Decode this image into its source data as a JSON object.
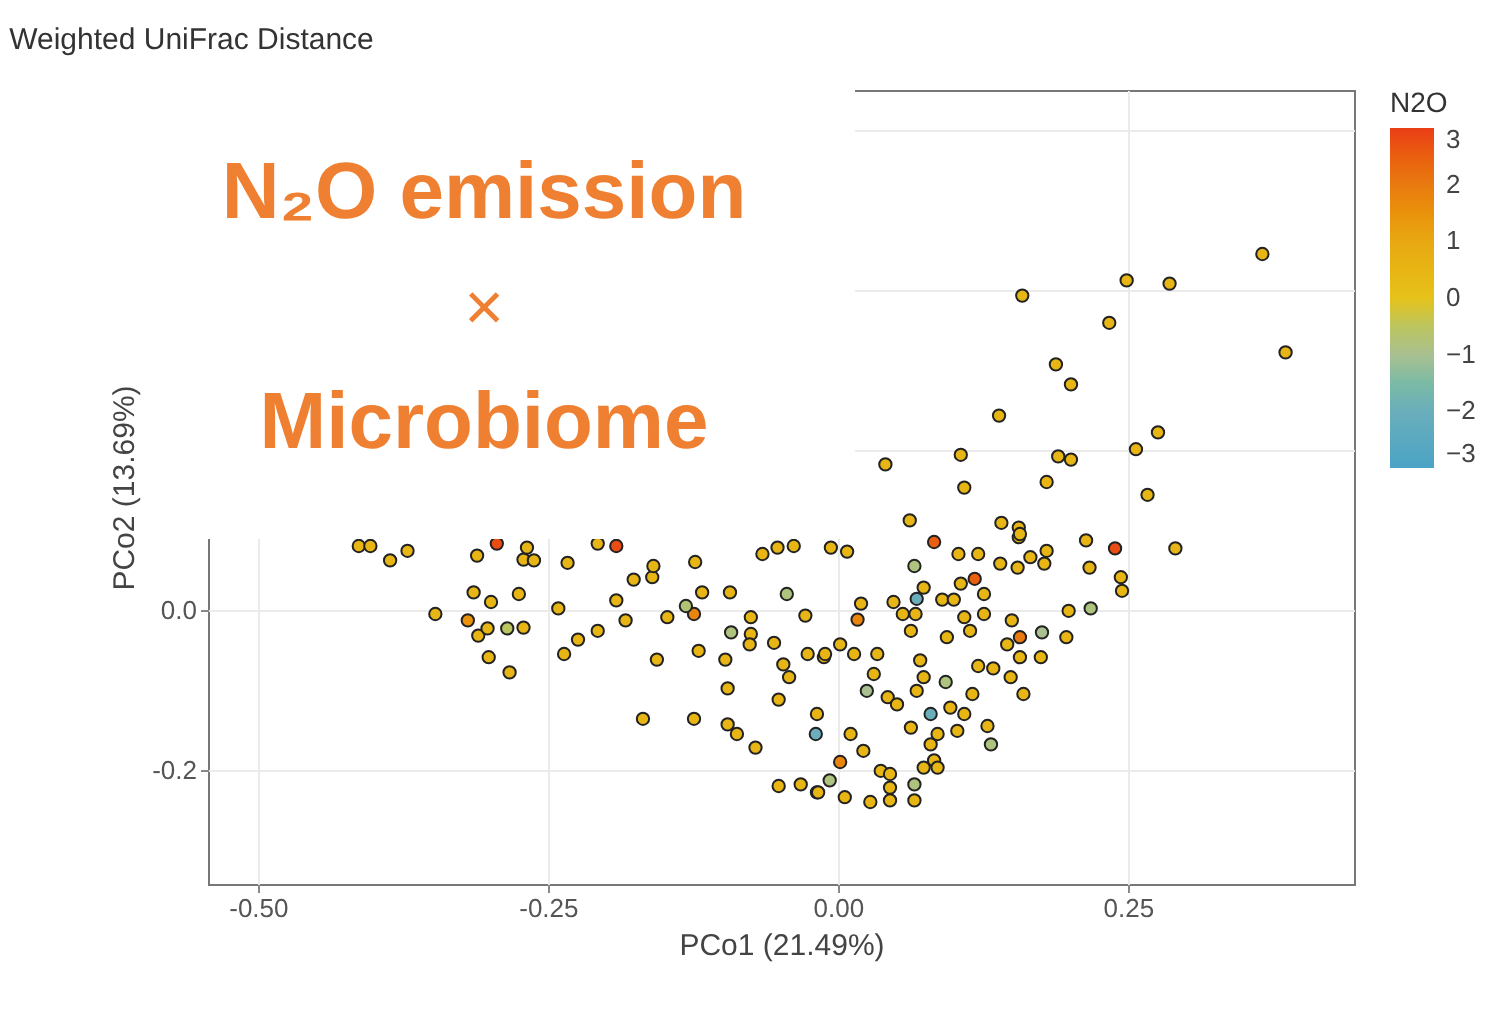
{
  "chart_data": {
    "type": "scatter",
    "title": "Weighted UniFrac Distance",
    "xlabel": "PCo1 (21.49%)",
    "ylabel": "PCo2 (13.69%)",
    "clabel": "N2O",
    "annotations": [
      "N₂O emission",
      "×",
      "Microbiome"
    ],
    "x": [
      0.366,
      0.249,
      0.286,
      0.159,
      0.234,
      0.386,
      0.188,
      0.201,
      0.139,
      0.276,
      0.257,
      0.106,
      0.041,
      0.19,
      0.201,
      0.109,
      0.18,
      0.267,
      0.062,
      0.141,
      0.156,
      0.156,
      0.083,
      0.214,
      0.239,
      0.291,
      -0.006,
      0.008,
      0.066,
      0.104,
      0.121,
      0.14,
      0.155,
      0.166,
      0.178,
      0.18,
      0.157,
      0.118,
      0.074,
      0.106,
      0.217,
      0.244,
      0.245,
      0.02,
      0.017,
      0.048,
      0.056,
      0.067,
      0.068,
      0.09,
      0.1,
      0.126,
      0.109,
      0.126,
      0.114,
      0.094,
      0.063,
      0.15,
      0.146,
      0.157,
      0.176,
      0.197,
      0.199,
      0.218,
      0.157,
      0.175,
      0.121,
      0.134,
      0.149,
      0.16,
      0.093,
      0.071,
      0.074,
      0.068,
      0.116,
      0.097,
      0.109,
      0.08,
      0.063,
      0.103,
      0.086,
      0.132,
      0.08,
      0.083,
      0.074,
      0.086,
      0.066,
      0.066,
      0.045,
      0.045,
      0.028,
      0.006,
      0.025,
      0.043,
      0.051,
      0.034,
      0.031,
      0.002,
      0.014,
      -0.012,
      -0.019,
      0.002,
      -0.007,
      -0.018,
      0.011,
      0.022,
      0.037,
      0.045,
      -0.018,
      0.129,
      -0.413,
      -0.403,
      -0.386,
      -0.371,
      -0.294,
      -0.311,
      -0.271,
      -0.262,
      -0.268,
      -0.233,
      -0.207,
      -0.191,
      -0.347,
      -0.319,
      -0.314,
      -0.299,
      -0.275,
      -0.31,
      -0.302,
      -0.285,
      -0.271,
      -0.301,
      -0.283,
      -0.241,
      -0.236,
      -0.224,
      -0.207,
      -0.191,
      -0.183,
      -0.176,
      -0.16,
      -0.159,
      -0.123,
      -0.117,
      -0.093,
      -0.124,
      -0.131,
      -0.147,
      -0.156,
      -0.12,
      -0.168,
      -0.124,
      -0.097,
      -0.095,
      -0.092,
      -0.075,
      -0.075,
      -0.076,
      -0.095,
      -0.087,
      -0.071,
      -0.065,
      -0.052,
      -0.038,
      -0.044,
      -0.028,
      -0.055,
      -0.047,
      -0.042,
      -0.051,
      -0.026,
      -0.011,
      -0.051,
      -0.032,
      -0.017
    ],
    "values": [
      0.445,
      0.412,
      0.408,
      0.393,
      0.359,
      0.322,
      0.307,
      0.282,
      0.243,
      0.222,
      0.201,
      0.194,
      0.182,
      0.192,
      0.188,
      0.153,
      0.16,
      0.144,
      0.112,
      0.109,
      0.103,
      0.091,
      0.085,
      0.087,
      0.077,
      0.077,
      0.078,
      0.073,
      0.055,
      0.07,
      0.07,
      0.058,
      0.053,
      0.066,
      0.058,
      0.074,
      0.095,
      0.039,
      0.028,
      0.033,
      0.053,
      0.041,
      0.024,
      0.008,
      -0.012,
      0.01,
      -0.005,
      -0.005,
      0.014,
      0.013,
      0.013,
      0.02,
      -0.009,
      -0.005,
      -0.026,
      -0.034,
      -0.026,
      -0.013,
      -0.043,
      -0.034,
      -0.028,
      -0.034,
      -0.001,
      0.002,
      -0.059,
      -0.059,
      -0.07,
      -0.073,
      -0.084,
      -0.105,
      -0.09,
      -0.063,
      -0.084,
      -0.101,
      -0.105,
      -0.122,
      -0.13,
      -0.13,
      -0.147,
      -0.151,
      -0.155,
      -0.168,
      -0.168,
      -0.188,
      -0.197,
      -0.197,
      -0.218,
      -0.238,
      -0.222,
      -0.238,
      -0.24,
      -0.234,
      -0.101,
      -0.109,
      -0.118,
      -0.055,
      -0.08,
      -0.043,
      -0.055,
      -0.059,
      -0.155,
      -0.19,
      -0.213,
      -0.228,
      -0.155,
      -0.176,
      -0.201,
      -0.205,
      -0.13,
      -0.145,
      0.08,
      0.08,
      0.062,
      0.074,
      0.083,
      0.068,
      0.063,
      0.062,
      0.078,
      0.059,
      0.083,
      0.08,
      -0.005,
      -0.013,
      0.022,
      0.01,
      0.02,
      -0.032,
      -0.023,
      -0.023,
      -0.022,
      -0.059,
      -0.078,
      0.002,
      -0.055,
      -0.037,
      -0.026,
      0.012,
      -0.013,
      0.038,
      0.041,
      0.055,
      0.06,
      0.022,
      0.022,
      -0.005,
      0.005,
      -0.009,
      -0.062,
      -0.051,
      -0.136,
      -0.136,
      -0.062,
      -0.098,
      -0.028,
      -0.009,
      -0.03,
      -0.043,
      -0.143,
      -0.155,
      -0.172,
      0.07,
      0.078,
      0.08,
      0.02,
      -0.007,
      -0.041,
      -0.068,
      -0.084,
      -0.112,
      -0.055,
      -0.055,
      -0.22,
      -0.218,
      -0.228
    ],
    "cvalues": [
      0.5,
      0.5,
      0.5,
      0.5,
      0.5,
      0.5,
      0.5,
      0.5,
      0.5,
      0.5,
      0.5,
      0.5,
      0.5,
      0.5,
      0.5,
      0.5,
      0.5,
      0.5,
      0.5,
      0.5,
      0.5,
      0.5,
      2.5,
      0.5,
      2.8,
      0.5,
      0.5,
      0.5,
      -0.8,
      0.5,
      0.5,
      0.5,
      0.5,
      0.5,
      0.5,
      0.5,
      0.5,
      2.5,
      0.5,
      0.5,
      0.5,
      0.5,
      0.5,
      0.5,
      1.8,
      0.5,
      0.5,
      0.5,
      -2,
      0.5,
      0.5,
      0.5,
      0.5,
      0.5,
      0.5,
      0.5,
      0.5,
      0.5,
      0.5,
      2,
      -1,
      0.5,
      0.5,
      -0.8,
      0.5,
      0.5,
      0.5,
      0.5,
      0.5,
      0.5,
      -0.8,
      0.5,
      0.5,
      0.5,
      0.5,
      0.5,
      0.5,
      -2,
      0.5,
      0.5,
      0.5,
      -0.8,
      0.5,
      0.5,
      0.5,
      0.5,
      -0.8,
      0.5,
      0.5,
      0.5,
      0.5,
      0.5,
      -1,
      0.5,
      0.5,
      0.5,
      0.5,
      0.5,
      0.5,
      0.5,
      -2,
      1.8,
      -0.8,
      0.5,
      0.5,
      0.5,
      0.5,
      0.5,
      0.5,
      0.5,
      0.5,
      0.5,
      0.5,
      0.5,
      2.8,
      0.5,
      0.5,
      0.5,
      0.5,
      0.5,
      0.5,
      2.8,
      0.5,
      1.5,
      0.5,
      0.5,
      0.5,
      0.5,
      0.5,
      -0.5,
      0.5,
      0.5,
      0.5,
      0.5,
      0.5,
      0.5,
      0.5,
      0.5,
      0.5,
      0.5,
      0.5,
      0.5,
      0.5,
      0.5,
      0.5,
      1.8,
      -0.7,
      0.5,
      0.5,
      0.5,
      0.5,
      0.5,
      0.5,
      0.5,
      -0.8,
      0.5,
      0.5,
      0.5,
      0.5,
      0.5,
      0.5,
      0.5,
      0.5,
      0.5,
      -0.8,
      0.5,
      0.5,
      0.5,
      0.5,
      0.5,
      0.5,
      0.5,
      0.5,
      0.5,
      0.5
    ],
    "clim": [
      -3,
      3
    ],
    "cticks": [
      -3,
      -2,
      -1,
      0,
      1,
      2,
      3
    ],
    "xlim": [
      -0.543,
      0.445
    ],
    "ylim": [
      -0.3425,
      0.65
    ],
    "xticks": [
      {
        "value": -0.5,
        "label": "-0.50"
      },
      {
        "value": -0.25,
        "label": "-0.25"
      },
      {
        "value": 0,
        "label": "0.00"
      },
      {
        "value": 0.25,
        "label": "0.25"
      }
    ],
    "yticks": [
      {
        "value": -0.2,
        "label": "-0.2"
      },
      {
        "value": 0,
        "label": "0.0"
      },
      {
        "value": 0.2,
        "label": null
      },
      {
        "value": 0.4,
        "label": null
      },
      {
        "value": 0.6,
        "label": null
      }
    ],
    "grid": true
  }
}
